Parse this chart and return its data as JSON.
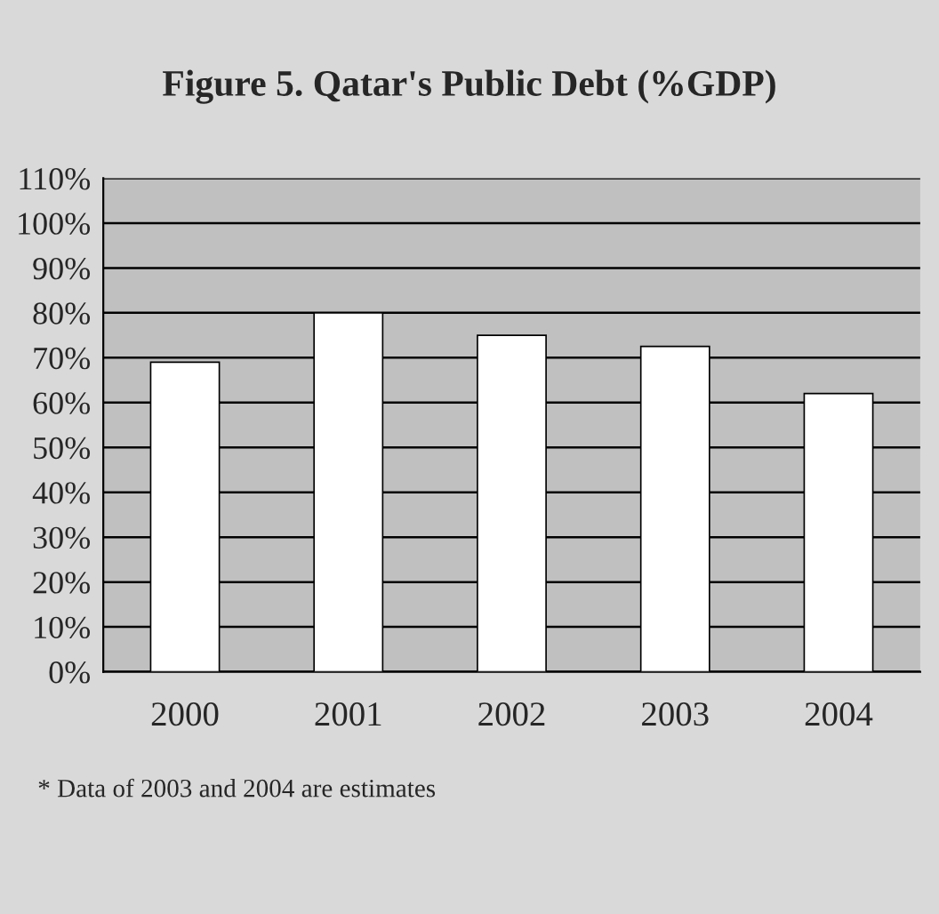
{
  "chart_data": {
    "type": "bar",
    "title": "Figure 5. Qatar's Public Debt (%GDP)",
    "categories": [
      "2000",
      "2001",
      "2002",
      "2003",
      "2004"
    ],
    "values": [
      69,
      80,
      75,
      72.5,
      62
    ],
    "color": "#ffffff",
    "ylim": [
      0,
      110
    ],
    "yticks": [
      {
        "value": 0,
        "label": "0%"
      },
      {
        "value": 10,
        "label": "10%"
      },
      {
        "value": 20,
        "label": "20%"
      },
      {
        "value": 30,
        "label": "30%"
      },
      {
        "value": 40,
        "label": "40%"
      },
      {
        "value": 50,
        "label": "50%"
      },
      {
        "value": 60,
        "label": "60%"
      },
      {
        "value": 70,
        "label": "70%"
      },
      {
        "value": 80,
        "label": "80%"
      },
      {
        "value": 90,
        "label": "90%"
      },
      {
        "value": 100,
        "label": "100%"
      },
      {
        "value": 110,
        "label": "110%"
      }
    ],
    "grid": "y",
    "annotations": [
      "* Data of 2003 and 2004 are estimates"
    ]
  }
}
